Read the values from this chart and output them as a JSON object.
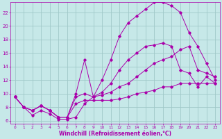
{
  "xlabel": "Windchill (Refroidissement éolien,°C)",
  "bg_color": "#c6e8e8",
  "grid_color": "#a0c8c8",
  "line_color": "#aa00aa",
  "xlim": [
    -0.5,
    23.5
  ],
  "ylim": [
    5.5,
    23.5
  ],
  "yticks": [
    6,
    8,
    10,
    12,
    14,
    16,
    18,
    20,
    22
  ],
  "xticks": [
    0,
    1,
    2,
    3,
    4,
    5,
    6,
    7,
    8,
    9,
    10,
    11,
    12,
    13,
    14,
    15,
    16,
    17,
    18,
    19,
    20,
    21,
    22,
    23
  ],
  "line1_x": [
    0,
    1,
    2,
    3,
    4,
    5,
    6,
    7,
    8,
    9,
    10,
    11,
    12,
    13,
    14,
    15,
    16,
    17,
    18,
    19,
    20,
    21,
    22,
    23
  ],
  "line1_y": [
    9.5,
    8.0,
    6.8,
    7.5,
    7.0,
    6.2,
    6.2,
    6.5,
    8.5,
    9.5,
    12.0,
    15.0,
    18.5,
    20.5,
    21.5,
    22.5,
    23.5,
    23.5,
    23.0,
    22.0,
    19.0,
    17.0,
    14.5,
    12.0
  ],
  "line2_x": [
    0,
    1,
    2,
    3,
    4,
    5,
    6,
    7,
    8,
    9,
    10,
    11,
    12,
    13,
    14,
    15,
    16,
    17,
    18,
    19,
    20,
    21,
    22,
    23
  ],
  "line2_y": [
    9.5,
    8.0,
    7.5,
    8.2,
    7.5,
    6.5,
    6.5,
    10.0,
    15.0,
    9.5,
    10.2,
    11.5,
    13.5,
    15.0,
    16.0,
    17.0,
    17.2,
    17.5,
    17.0,
    13.5,
    13.0,
    11.0,
    12.5,
    11.5
  ],
  "line3_x": [
    0,
    1,
    2,
    3,
    4,
    5,
    6,
    7,
    8,
    9,
    10,
    11,
    12,
    13,
    14,
    15,
    16,
    17,
    18,
    19,
    20,
    21,
    22,
    23
  ],
  "line3_y": [
    9.5,
    8.0,
    7.5,
    8.2,
    7.5,
    6.5,
    6.5,
    9.5,
    10.0,
    9.5,
    9.8,
    10.2,
    11.0,
    11.5,
    12.5,
    13.5,
    14.5,
    15.0,
    15.5,
    16.5,
    17.0,
    13.5,
    13.0,
    12.5
  ],
  "line4_x": [
    0,
    1,
    2,
    3,
    4,
    5,
    6,
    7,
    8,
    9,
    10,
    11,
    12,
    13,
    14,
    15,
    16,
    17,
    18,
    19,
    20,
    21,
    22,
    23
  ],
  "line4_y": [
    9.5,
    8.0,
    7.5,
    8.2,
    7.5,
    6.5,
    6.5,
    8.5,
    9.0,
    9.0,
    9.0,
    9.0,
    9.2,
    9.5,
    10.0,
    10.2,
    10.5,
    11.0,
    11.0,
    11.5,
    11.5,
    11.5,
    11.5,
    11.5
  ]
}
